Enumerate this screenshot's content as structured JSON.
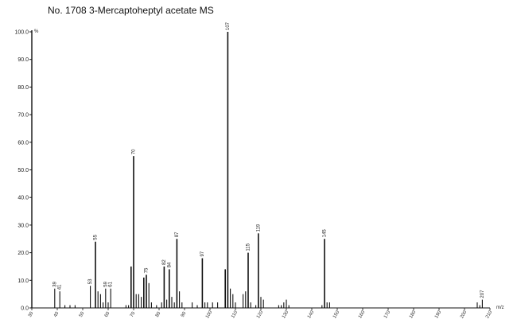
{
  "header": {
    "title": "No. 1708 3-Mercaptoheptyl acetate MS"
  },
  "chart_data": {
    "type": "bar",
    "title": "No. 1708 3-Mercaptoheptyl acetate MS",
    "xlabel": "m/z",
    "ylabel": "%",
    "xlim": [
      30,
      210
    ],
    "ylim": [
      0,
      100
    ],
    "yticks": [
      "0.0",
      "10.0",
      "20.0",
      "30.0",
      "40.0",
      "50.0",
      "60.0",
      "70.0",
      "80.0",
      "90.0",
      "100.0"
    ],
    "xticks": [
      30,
      40,
      50,
      60,
      70,
      80,
      90,
      100,
      110,
      120,
      130,
      140,
      150,
      160,
      170,
      180,
      190,
      200,
      210
    ],
    "grid": false,
    "color": "#111111",
    "peaks": [
      {
        "mz": 39,
        "i": 7,
        "label": "39"
      },
      {
        "mz": 41,
        "i": 6,
        "label": "41"
      },
      {
        "mz": 43,
        "i": 1
      },
      {
        "mz": 45,
        "i": 1
      },
      {
        "mz": 47,
        "i": 1
      },
      {
        "mz": 53,
        "i": 8,
        "label": "53"
      },
      {
        "mz": 55,
        "i": 24,
        "label": "55"
      },
      {
        "mz": 56,
        "i": 6
      },
      {
        "mz": 57,
        "i": 5
      },
      {
        "mz": 58,
        "i": 2
      },
      {
        "mz": 59,
        "i": 7,
        "label": "59"
      },
      {
        "mz": 60,
        "i": 2
      },
      {
        "mz": 61,
        "i": 7,
        "label": "61"
      },
      {
        "mz": 67,
        "i": 1
      },
      {
        "mz": 68,
        "i": 1
      },
      {
        "mz": 69,
        "i": 15
      },
      {
        "mz": 70,
        "i": 55,
        "label": "70"
      },
      {
        "mz": 71,
        "i": 5
      },
      {
        "mz": 72,
        "i": 5
      },
      {
        "mz": 73,
        "i": 4
      },
      {
        "mz": 74,
        "i": 11
      },
      {
        "mz": 75,
        "i": 12,
        "label": "75"
      },
      {
        "mz": 76,
        "i": 9
      },
      {
        "mz": 77,
        "i": 2
      },
      {
        "mz": 79,
        "i": 1
      },
      {
        "mz": 81,
        "i": 2
      },
      {
        "mz": 82,
        "i": 15,
        "label": "82"
      },
      {
        "mz": 83,
        "i": 3
      },
      {
        "mz": 84,
        "i": 14,
        "label": "84"
      },
      {
        "mz": 85,
        "i": 4
      },
      {
        "mz": 86,
        "i": 2
      },
      {
        "mz": 87,
        "i": 25,
        "label": "87"
      },
      {
        "mz": 88,
        "i": 6
      },
      {
        "mz": 89,
        "i": 2
      },
      {
        "mz": 93,
        "i": 2
      },
      {
        "mz": 95,
        "i": 1
      },
      {
        "mz": 97,
        "i": 18,
        "label": "97"
      },
      {
        "mz": 98,
        "i": 2
      },
      {
        "mz": 99,
        "i": 2
      },
      {
        "mz": 101,
        "i": 2
      },
      {
        "mz": 103,
        "i": 2
      },
      {
        "mz": 106,
        "i": 14
      },
      {
        "mz": 107,
        "i": 100,
        "label": "107"
      },
      {
        "mz": 108,
        "i": 7
      },
      {
        "mz": 109,
        "i": 5
      },
      {
        "mz": 110,
        "i": 2
      },
      {
        "mz": 113,
        "i": 5
      },
      {
        "mz": 114,
        "i": 6
      },
      {
        "mz": 115,
        "i": 20,
        "label": "115"
      },
      {
        "mz": 116,
        "i": 2
      },
      {
        "mz": 118,
        "i": 1
      },
      {
        "mz": 119,
        "i": 27,
        "label": "119"
      },
      {
        "mz": 120,
        "i": 4
      },
      {
        "mz": 121,
        "i": 3
      },
      {
        "mz": 127,
        "i": 1
      },
      {
        "mz": 128,
        "i": 1
      },
      {
        "mz": 129,
        "i": 2
      },
      {
        "mz": 130,
        "i": 3
      },
      {
        "mz": 131,
        "i": 1
      },
      {
        "mz": 144,
        "i": 1
      },
      {
        "mz": 145,
        "i": 25,
        "label": "145"
      },
      {
        "mz": 146,
        "i": 2
      },
      {
        "mz": 147,
        "i": 2
      },
      {
        "mz": 205,
        "i": 2
      },
      {
        "mz": 206,
        "i": 1
      },
      {
        "mz": 207,
        "i": 3,
        "label": "207"
      }
    ]
  }
}
